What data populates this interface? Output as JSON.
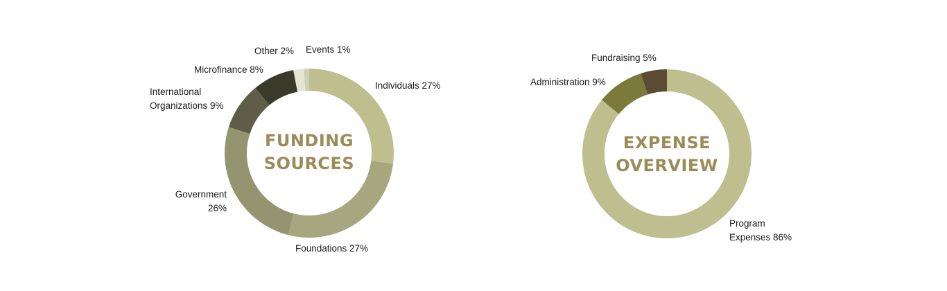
{
  "chart_data": [
    {
      "type": "pie",
      "title": "FUNDING SOURCES",
      "title_lines": [
        "FUNDING",
        "SOURCES"
      ],
      "slices": [
        {
          "name": "Individuals",
          "value": 27,
          "label_lines": [
            "Individuals 27%"
          ],
          "color": "#bfbe8e"
        },
        {
          "name": "Foundations",
          "value": 27,
          "label_lines": [
            "Foundations 27%"
          ],
          "color": "#a6a67f"
        },
        {
          "name": "Government",
          "value": 26,
          "label_lines": [
            "Government",
            "26%"
          ],
          "color": "#959470"
        },
        {
          "name": "International Organizations",
          "value": 9,
          "label_lines": [
            "International",
            "Organizations 9%"
          ],
          "color": "#5f5d47"
        },
        {
          "name": "Microfinance",
          "value": 8,
          "label_lines": [
            "Microfinance 8%"
          ],
          "color": "#3a3a2b"
        },
        {
          "name": "Other",
          "value": 2,
          "label_lines": [
            "Other 2%"
          ],
          "color": "#e6e5d5"
        },
        {
          "name": "Events",
          "value": 1,
          "label_lines": [
            "Events 1%"
          ],
          "color": "#d0cfb6"
        }
      ]
    },
    {
      "type": "pie",
      "title": "EXPENSE OVERVIEW",
      "title_lines": [
        "EXPENSE",
        "OVERVIEW"
      ],
      "slices": [
        {
          "name": "Program Expenses",
          "value": 86,
          "label_lines": [
            "Program",
            "Expenses 86%"
          ],
          "color": "#bfbe8e"
        },
        {
          "name": "Administration",
          "value": 9,
          "label_lines": [
            "Administration 9%"
          ],
          "color": "#7c7a3b"
        },
        {
          "name": "Fundraising",
          "value": 5,
          "label_lines": [
            "Fundraising 5%"
          ],
          "color": "#5b4b32"
        }
      ]
    }
  ]
}
